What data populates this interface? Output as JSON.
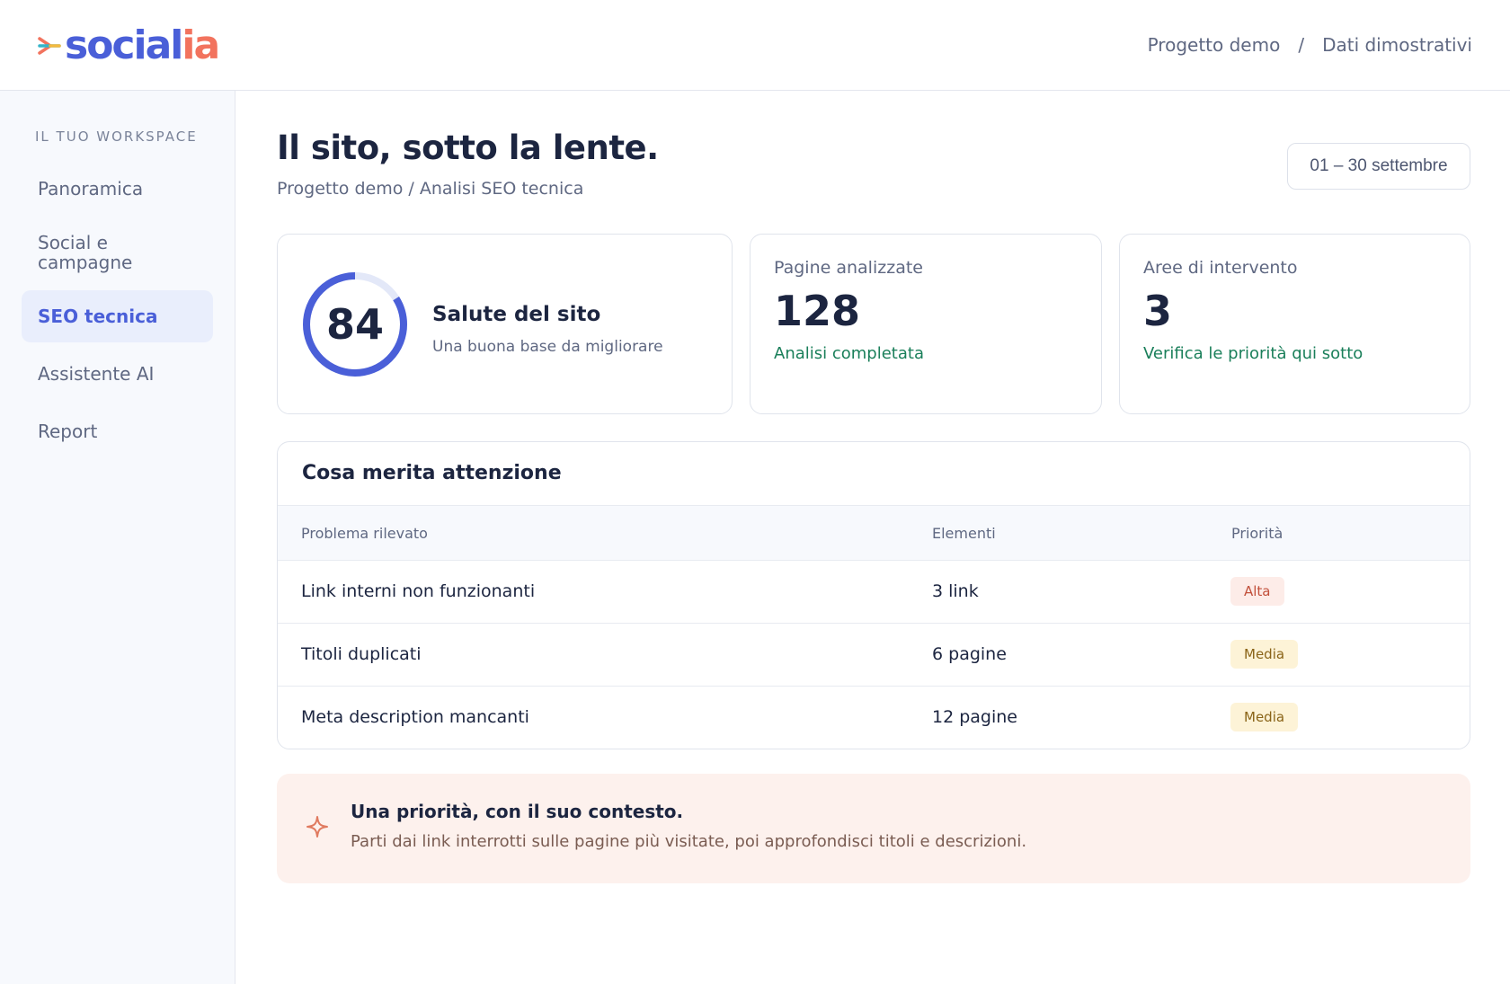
{
  "brand": {
    "name_part1": "soci",
    "name_part2": "al",
    "name_part3": "ia",
    "accent": "#4a5fd8",
    "accent2": "#f2735e"
  },
  "header": {
    "crumb_project": "Progetto demo",
    "crumb_sep": "/",
    "crumb_data": "Dati dimostrativi"
  },
  "sidebar": {
    "section_label": "IL TUO WORKSPACE",
    "items": [
      {
        "label": "Panoramica",
        "active": false
      },
      {
        "label": "Social e campagne",
        "active": false
      },
      {
        "label": "SEO tecnica",
        "active": true
      },
      {
        "label": "Assistente AI",
        "active": false
      },
      {
        "label": "Report",
        "active": false
      }
    ]
  },
  "main": {
    "title": "Il sito, sotto la lente.",
    "subtitle": "Progetto demo / Analisi SEO tecnica",
    "date_range": "01 – 30 settembre"
  },
  "health": {
    "score": "84",
    "score_fraction": 0.84,
    "title": "Salute del sito",
    "subtitle": "Una buona base da migliorare"
  },
  "stats": [
    {
      "label": "Pagine analizzate",
      "value": "128",
      "note": "Analisi completata"
    },
    {
      "label": "Aree di intervento",
      "value": "3",
      "note": "Verifica le priorità qui sotto"
    }
  ],
  "issues": {
    "title": "Cosa merita attenzione",
    "columns": [
      "Problema rilevato",
      "Elementi",
      "Priorità"
    ],
    "rows": [
      {
        "problem": "Link interni non funzionanti",
        "count": "3 link",
        "priority": "Alta"
      },
      {
        "problem": "Titoli duplicati",
        "count": "6 pagine",
        "priority": "Media"
      },
      {
        "problem": "Meta description mancanti",
        "count": "12 pagine",
        "priority": "Media"
      }
    ]
  },
  "tip": {
    "icon": "sparkle-icon",
    "title": "Una priorità, con il suo contesto.",
    "text": "Parti dai link interrotti sulle pagine più visitate, poi approfondisci titoli e descrizioni."
  }
}
